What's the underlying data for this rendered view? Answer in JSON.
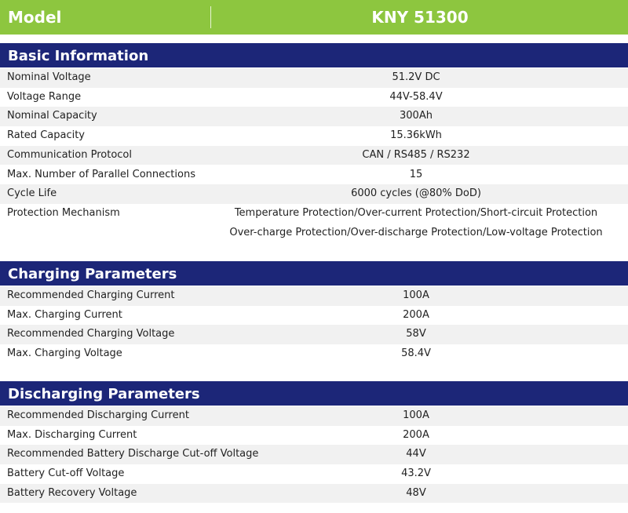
{
  "header": {
    "label": "Model",
    "value": "KNY 51300"
  },
  "sections": [
    {
      "title": "Basic Information",
      "rows": [
        {
          "label": "Nominal Voltage",
          "values": [
            "51.2V DC"
          ]
        },
        {
          "label": "Voltage Range",
          "values": [
            "44V-58.4V"
          ]
        },
        {
          "label": "Nominal Capacity",
          "values": [
            "300Ah"
          ]
        },
        {
          "label": "Rated Capacity",
          "values": [
            "15.36kWh"
          ]
        },
        {
          "label": "Communication Protocol",
          "values": [
            "CAN / RS485 / RS232"
          ]
        },
        {
          "label": "Max. Number of Parallel Connections",
          "values": [
            "15"
          ]
        },
        {
          "label": "Cycle Life",
          "values": [
            "6000 cycles (@80% DoD)"
          ]
        },
        {
          "label": "Protection Mechanism",
          "values": [
            "Temperature Protection/Over-current Protection/Short-circuit Protection",
            "Over-charge Protection/Over-discharge Protection/Low-voltage Protection"
          ]
        }
      ]
    },
    {
      "title": "Charging Parameters",
      "rows": [
        {
          "label": "Recommended Charging Current",
          "values": [
            "100A"
          ]
        },
        {
          "label": "Max.  Charging Current",
          "values": [
            "200A"
          ]
        },
        {
          "label": "Recommended Charging Voltage",
          "values": [
            "58V"
          ]
        },
        {
          "label": "Max.  Charging Voltage",
          "values": [
            "58.4V"
          ]
        }
      ]
    },
    {
      "title": "Discharging Parameters",
      "rows": [
        {
          "label": "Recommended Discharging Current",
          "values": [
            "100A"
          ]
        },
        {
          "label": "Max.  Discharging Current",
          "values": [
            "200A"
          ]
        },
        {
          "label": "Recommended Battery Discharge Cut-off Voltage",
          "values": [
            "44V"
          ]
        },
        {
          "label": "Battery Cut-off Voltage",
          "values": [
            "43.2V"
          ]
        },
        {
          "label": "Battery Recovery Voltage",
          "values": [
            "48V"
          ]
        }
      ]
    }
  ]
}
